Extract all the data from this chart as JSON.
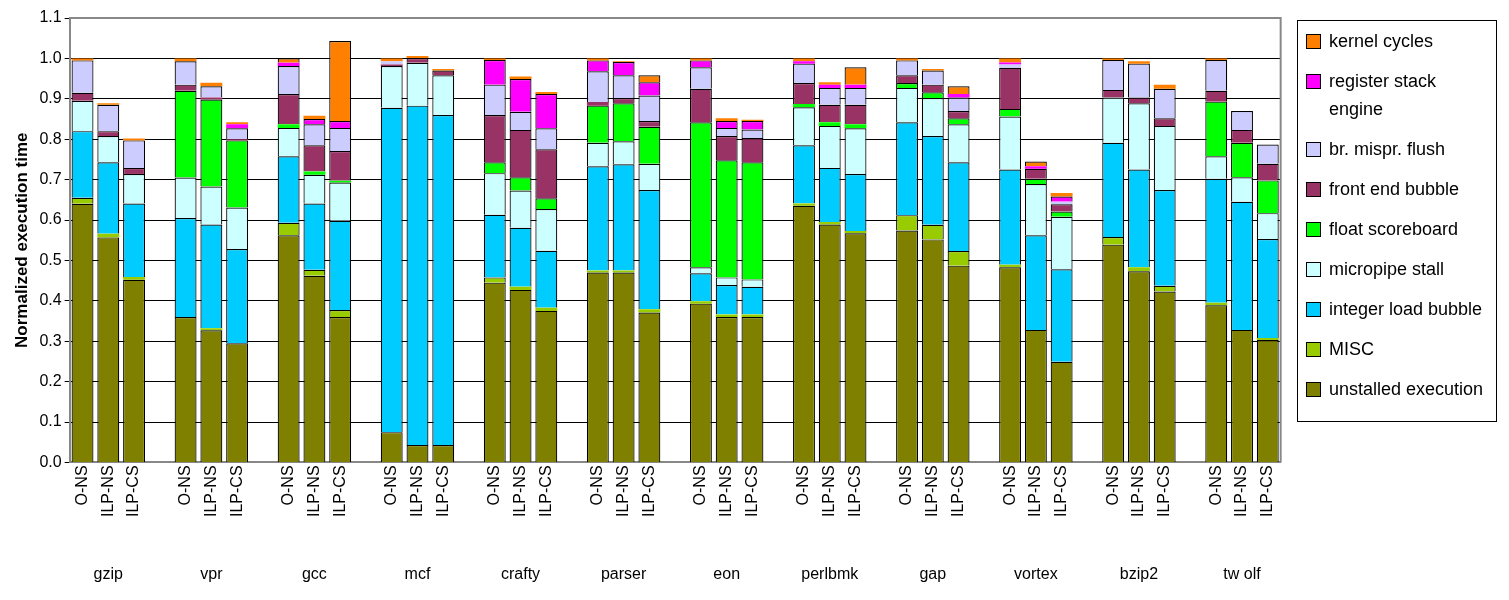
{
  "chart_data": {
    "type": "bar",
    "stacked": true,
    "ylabel": "Normalized execution time",
    "categories": [
      "O-NS",
      "ILP-NS",
      "ILP-CS",
      null,
      "O-NS",
      "ILP-NS",
      "ILP-CS",
      null,
      "O-NS",
      "ILP-NS",
      "ILP-CS",
      null,
      "O-NS",
      "ILP-NS",
      "ILP-CS",
      null,
      "O-NS",
      "ILP-NS",
      "ILP-CS",
      null,
      "O-NS",
      "ILP-NS",
      "ILP-CS",
      null,
      "O-NS",
      "ILP-NS",
      "ILP-CS",
      null,
      "O-NS",
      "ILP-NS",
      "ILP-CS",
      null,
      "O-NS",
      "ILP-NS",
      "ILP-CS",
      null,
      "O-NS",
      "ILP-NS",
      "ILP-CS",
      null,
      "O-NS",
      "ILP-NS",
      "ILP-CS",
      null,
      "O-NS",
      "ILP-NS",
      "ILP-CS"
    ],
    "annotations": [
      "gzip",
      "vpr",
      "gcc",
      "mcf",
      "crafty",
      "parser",
      "eon",
      "perlbmk",
      "gap",
      "vortex",
      "bzip2",
      "tw olf"
    ],
    "series": [
      {
        "name": "unstalled execution",
        "color": "#808000",
        "values": [
          0.64,
          0.557,
          0.452,
          null,
          0.36,
          0.327,
          0.295,
          null,
          0.562,
          0.462,
          0.36,
          null,
          0.075,
          0.043,
          0.043,
          null,
          0.445,
          0.427,
          0.375,
          null,
          0.47,
          0.47,
          0.371,
          null,
          0.393,
          0.36,
          0.36,
          null,
          0.635,
          0.589,
          0.567,
          null,
          0.574,
          0.552,
          0.487,
          null,
          0.483,
          0.328,
          0.249,
          null,
          0.539,
          0.473,
          0.423,
          null,
          0.389,
          0.328,
          0.303
        ]
      },
      {
        "name": "MISC",
        "color": "#99cc00",
        "values": [
          0.015,
          0.009,
          0.007,
          null,
          0,
          0.005,
          0,
          null,
          0.031,
          0.015,
          0.017,
          null,
          0,
          0,
          0,
          null,
          0.013,
          0.008,
          0.008,
          null,
          0.005,
          0.005,
          0.008,
          null,
          0.006,
          0.006,
          0.006,
          null,
          0.006,
          0.006,
          0.006,
          null,
          0.038,
          0.036,
          0.036,
          null,
          0.006,
          0,
          0,
          null,
          0.019,
          0.01,
          0.014,
          null,
          0.006,
          0,
          0.005
        ]
      },
      {
        "name": "integer load bubble",
        "color": "#00ccff",
        "values": [
          0.165,
          0.177,
          0.182,
          null,
          0.245,
          0.257,
          0.233,
          null,
          0.165,
          0.164,
          0.221,
          null,
          0.803,
          0.84,
          0.817,
          null,
          0.155,
          0.146,
          0.141,
          null,
          0.258,
          0.263,
          0.295,
          null,
          0.069,
          0.073,
          0.069,
          null,
          0.144,
          0.134,
          0.141,
          null,
          0.23,
          0.22,
          0.22,
          null,
          0.236,
          0.234,
          0.229,
          null,
          0.233,
          0.242,
          0.237,
          null,
          0.307,
          0.317,
          0.245
        ]
      },
      {
        "name": "micropipe stall",
        "color": "#ccffff",
        "values": [
          0.075,
          0.065,
          0.073,
          null,
          0.1,
          0.094,
          0.103,
          null,
          0.07,
          0.071,
          0.095,
          null,
          0.103,
          0.106,
          0.098,
          null,
          0.103,
          0.092,
          0.103,
          null,
          0.058,
          0.057,
          0.065,
          null,
          0.015,
          0.019,
          0.018,
          null,
          0.094,
          0.104,
          0.113,
          null,
          0.085,
          0.094,
          0.094,
          null,
          0.131,
          0.127,
          0.13,
          null,
          0.112,
          0.164,
          0.159,
          null,
          0.056,
          0.061,
          0.064
        ]
      },
      {
        "name": "float scoreboard",
        "color": "#00ff00",
        "values": [
          0,
          0,
          0,
          null,
          0.215,
          0.215,
          0.166,
          null,
          0.009,
          0.008,
          0.004,
          null,
          0,
          0,
          0,
          null,
          0.027,
          0.033,
          0.027,
          null,
          0.092,
          0.094,
          0.092,
          null,
          0.359,
          0.29,
          0.29,
          null,
          0.008,
          0.009,
          0.01,
          null,
          0.012,
          0.014,
          0.015,
          null,
          0.019,
          0.013,
          0.013,
          null,
          0,
          0,
          0,
          null,
          0.135,
          0.085,
          0.081
        ]
      },
      {
        "name": "front end bubble",
        "color": "#993366",
        "values": [
          0.02,
          0.012,
          0.015,
          null,
          0.015,
          0.005,
          0.003,
          null,
          0.075,
          0.065,
          0.074,
          null,
          0.004,
          0.012,
          0.012,
          null,
          0.117,
          0.117,
          0.121,
          null,
          0.009,
          0.013,
          0.014,
          null,
          0.083,
          0.06,
          0.06,
          null,
          0.052,
          0.043,
          0.048,
          null,
          0.019,
          0.019,
          0.018,
          null,
          0.102,
          0.025,
          0.018,
          null,
          0.019,
          0.014,
          0.019,
          null,
          0.027,
          0.032,
          0.041
        ]
      },
      {
        "name": "br. mispr. flush",
        "color": "#ccccff",
        "values": [
          0.08,
          0.065,
          0.068,
          null,
          0.058,
          0.028,
          0.027,
          null,
          0.069,
          0.052,
          0.057,
          null,
          0.008,
          0,
          0,
          null,
          0.075,
          0.045,
          0.052,
          null,
          0.076,
          0.056,
          0.063,
          null,
          0.053,
          0.02,
          0.021,
          null,
          0.048,
          0.042,
          0.042,
          null,
          0.037,
          0.035,
          0.033,
          null,
          0.008,
          null,
          0.006,
          null,
          0.074,
          0.084,
          0.073,
          null,
          0.076,
          0.047,
          0.048
        ]
      },
      {
        "name": "register stack engine",
        "color": "#ff00ff",
        "values": [
          0,
          0,
          0,
          null,
          0,
          0,
          0.01,
          null,
          0.008,
          0.013,
          0.017,
          null,
          0,
          0,
          0,
          null,
          0.061,
          0.081,
          0.085,
          null,
          0.027,
          0.033,
          0.033,
          null,
          0.017,
          0.017,
          0.021,
          null,
          0.006,
          0.008,
          0.008,
          null,
          0,
          0,
          0.009,
          null,
          0.005,
          0.006,
          0.013,
          null,
          0,
          0,
          0,
          null,
          0,
          0,
          0
        ]
      },
      {
        "name": "kernel cycles",
        "color": "#ff8000",
        "values": [
          0.005,
          0.004,
          0.005,
          null,
          0.007,
          0.009,
          0.005,
          null,
          0.011,
          0.008,
          0.198,
          null,
          0.007,
          0.005,
          0.004,
          null,
          0.004,
          0.006,
          0.005,
          null,
          0.005,
          0.002,
          0.017,
          null,
          0.005,
          0.007,
          0.003,
          null,
          0.007,
          0.006,
          0.043,
          null,
          0.005,
          0.004,
          0.019,
          null,
          0.01,
          0.012,
          0.009,
          null,
          0.004,
          0.006,
          0.01,
          null,
          0.004,
          0,
          0
        ]
      }
    ],
    "ylim": [
      0,
      1.1
    ],
    "yticks": [
      {
        "value": 0,
        "label": "0.0"
      },
      {
        "value": 0.1,
        "label": "0.1"
      },
      {
        "value": 0.2,
        "label": "0.2"
      },
      {
        "value": 0.3,
        "label": "0.3"
      },
      {
        "value": 0.4,
        "label": "0.4"
      },
      {
        "value": 0.5,
        "label": "0.5"
      },
      {
        "value": 0.6,
        "label": "0.6"
      },
      {
        "value": 0.7,
        "label": "0.7"
      },
      {
        "value": 0.8,
        "label": "0.8"
      },
      {
        "value": 0.9,
        "label": "0.9"
      },
      {
        "value": 1,
        "label": "1.0"
      },
      {
        "value": 1.1,
        "label": "1.1"
      }
    ],
    "grid": "y",
    "legend": "right"
  }
}
